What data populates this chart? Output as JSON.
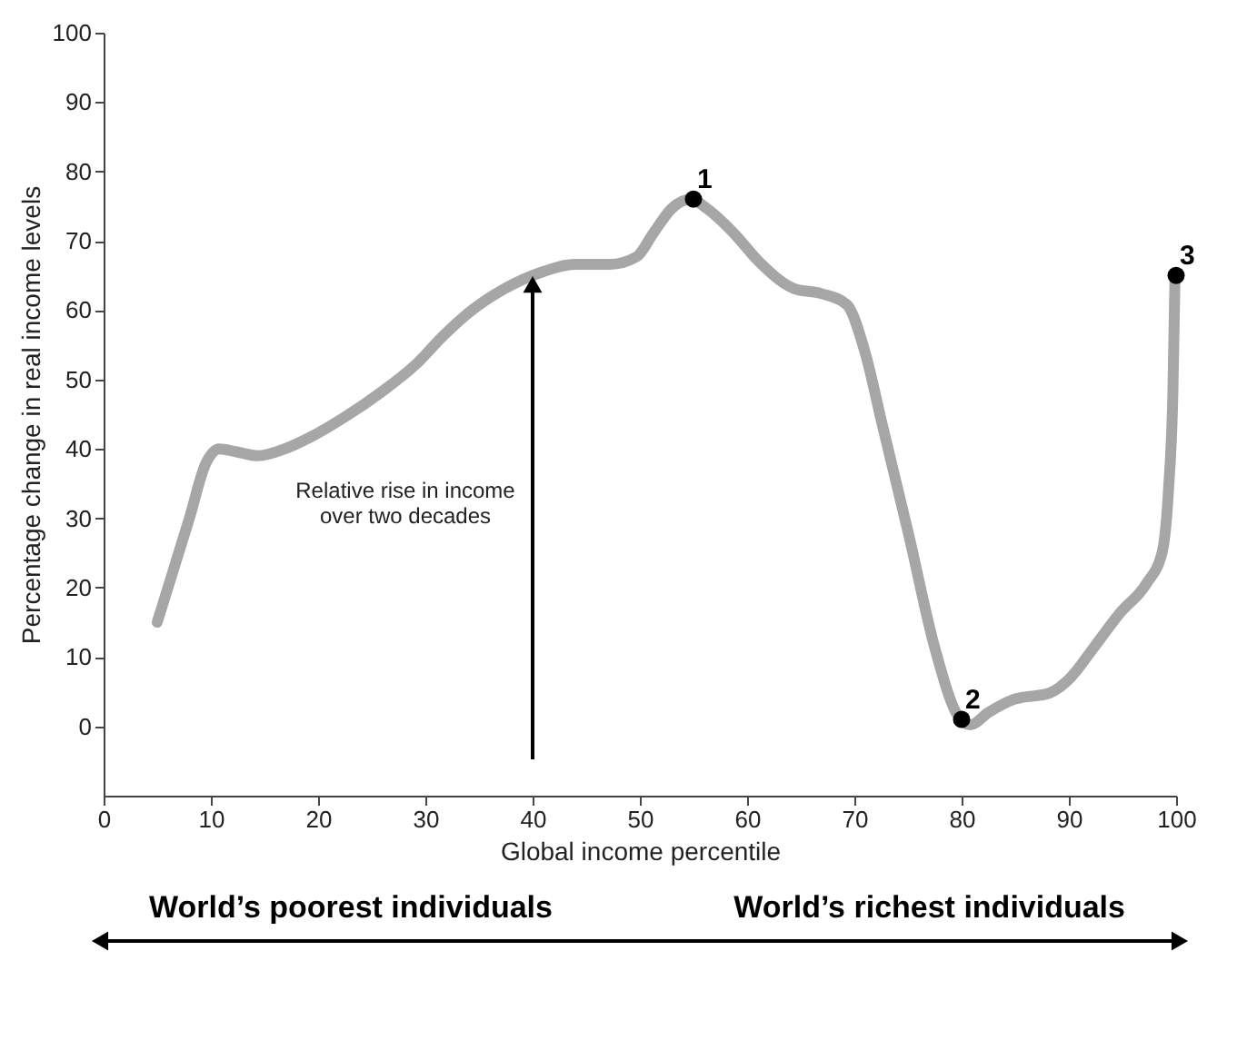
{
  "chart_data": {
    "type": "line",
    "xlabel": "Global income percentile",
    "ylabel": "Percentage change in real income levels",
    "xlim": [
      0,
      100
    ],
    "xticks": [
      0,
      10,
      20,
      30,
      40,
      50,
      60,
      70,
      80,
      90,
      100
    ],
    "ylim": [
      -10,
      100
    ],
    "yticks": [
      0,
      10,
      20,
      30,
      40,
      50,
      60,
      70,
      80,
      90,
      100
    ],
    "grid": false,
    "legend": false,
    "series": [
      {
        "color": "#a6a6a6",
        "marker": "none",
        "line_style": "solid",
        "x": [
          5,
          8,
          9.5,
          10.8,
          12.3,
          14.4,
          16.9,
          19.3,
          22.6,
          25.9,
          29.2,
          31.6,
          34.1,
          37.4,
          40.7,
          44,
          47.2,
          49.7,
          51.3,
          53,
          54.8,
          56.2,
          58.7,
          61.1,
          64.4,
          66.9,
          69.3,
          71,
          72.6,
          75.1,
          77.5,
          79.7,
          80.8,
          82.5,
          84.9,
          88.2,
          90.2,
          92.3,
          94.8,
          97.2,
          98.7,
          99.3,
          99.7,
          99.9
        ],
        "values": [
          15,
          30,
          37.8,
          40,
          39.6,
          39,
          40,
          41.7,
          44.7,
          48.2,
          52.3,
          56.2,
          59.7,
          63.1,
          65.4,
          66.6,
          66.6,
          67.7,
          71.2,
          74.7,
          76,
          74.7,
          71.2,
          67,
          63.1,
          62.4,
          60.8,
          53.9,
          43.5,
          27.4,
          11.3,
          1.4,
          0.2,
          2,
          3.9,
          4.8,
          7.1,
          11.3,
          16.4,
          20.5,
          25.1,
          34.3,
          48.2,
          65
        ]
      },
      {
        "type": "scatter",
        "color": "#000000",
        "marker": "circle",
        "x": [
          55,
          80,
          100
        ],
        "values": [
          76,
          1,
          65
        ]
      }
    ],
    "annotations": [
      "Relative rise in income\nover two decades",
      "World’s poorest individuals",
      "World’s richest individuals",
      {
        "text": "1",
        "x": 55,
        "y": 76
      },
      {
        "text": "2",
        "x": 80,
        "y": 1
      },
      {
        "text": "3",
        "x": 100,
        "y": 65
      }
    ]
  }
}
